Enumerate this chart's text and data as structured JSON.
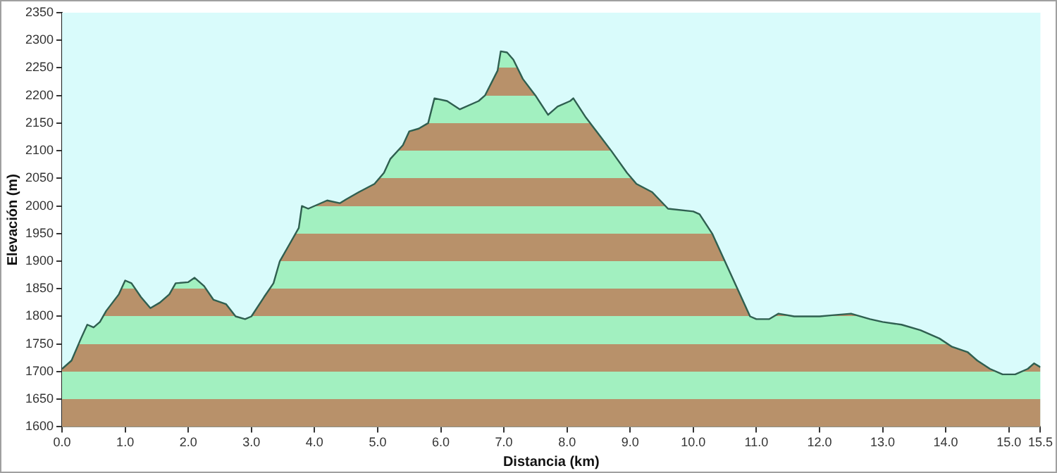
{
  "chart_data": {
    "type": "area",
    "xlabel": "Distancia (km)",
    "ylabel": "Elevación (m)",
    "x": [
      0.0,
      0.15,
      0.3,
      0.4,
      0.5,
      0.6,
      0.7,
      0.8,
      0.9,
      1.0,
      1.1,
      1.25,
      1.4,
      1.55,
      1.7,
      1.8,
      2.0,
      2.1,
      2.25,
      2.4,
      2.6,
      2.75,
      2.9,
      3.0,
      3.2,
      3.35,
      3.45,
      3.6,
      3.75,
      3.8,
      3.9,
      4.2,
      4.4,
      4.5,
      4.7,
      4.95,
      5.1,
      5.2,
      5.4,
      5.5,
      5.65,
      5.8,
      5.9,
      6.1,
      6.3,
      6.6,
      6.7,
      6.9,
      6.95,
      7.05,
      7.15,
      7.3,
      7.5,
      7.7,
      7.85,
      8.05,
      8.1,
      8.3,
      8.5,
      8.7,
      8.95,
      9.1,
      9.35,
      9.6,
      10.0,
      10.1,
      10.3,
      10.5,
      10.7,
      10.9,
      11.0,
      11.2,
      11.35,
      11.6,
      12.0,
      12.2,
      12.5,
      12.8,
      13.0,
      13.3,
      13.6,
      13.9,
      14.1,
      14.35,
      14.5,
      14.7,
      14.9,
      15.1,
      15.3,
      15.4,
      15.5
    ],
    "series": [
      {
        "color": "#2f5f50",
        "values": [
          1705,
          1720,
          1760,
          1785,
          1780,
          1790,
          1810,
          1825,
          1840,
          1865,
          1860,
          1835,
          1815,
          1825,
          1840,
          1860,
          1862,
          1870,
          1855,
          1830,
          1822,
          1800,
          1795,
          1800,
          1835,
          1860,
          1900,
          1930,
          1960,
          2000,
          1995,
          2010,
          2005,
          2012,
          2025,
          2040,
          2060,
          2085,
          2110,
          2135,
          2140,
          2150,
          2195,
          2190,
          2175,
          2190,
          2200,
          2245,
          2280,
          2278,
          2265,
          2230,
          2200,
          2165,
          2180,
          2190,
          2195,
          2160,
          2130,
          2100,
          2060,
          2040,
          2025,
          1995,
          1990,
          1985,
          1950,
          1900,
          1850,
          1800,
          1795,
          1795,
          1805,
          1800,
          1800,
          1802,
          1805,
          1795,
          1790,
          1785,
          1775,
          1760,
          1745,
          1735,
          1720,
          1705,
          1695,
          1695,
          1705,
          1715,
          1708
        ]
      }
    ],
    "xlim": [
      0,
      15.5
    ],
    "xticks": [
      {
        "value": 0,
        "label": "0.0"
      },
      {
        "value": 1,
        "label": "1.0"
      },
      {
        "value": 2,
        "label": "2.0"
      },
      {
        "value": 3,
        "label": "3.0"
      },
      {
        "value": 4,
        "label": "4.0"
      },
      {
        "value": 5,
        "label": "5.0"
      },
      {
        "value": 6,
        "label": "6.0"
      },
      {
        "value": 7,
        "label": "7.0"
      },
      {
        "value": 8,
        "label": "8.0"
      },
      {
        "value": 9,
        "label": "9.0"
      },
      {
        "value": 10,
        "label": "10.0"
      },
      {
        "value": 11,
        "label": "11.0"
      },
      {
        "value": 12,
        "label": "12.0"
      },
      {
        "value": 13,
        "label": "13.0"
      },
      {
        "value": 14,
        "label": "14.0"
      },
      {
        "value": 15,
        "label": "15.0"
      },
      15.5
    ],
    "ylim": [
      1600,
      2350
    ],
    "yticks": [
      1600,
      1650,
      1700,
      1750,
      1800,
      1850,
      1900,
      1950,
      2000,
      2050,
      2100,
      2150,
      2200,
      2250,
      2300,
      2350
    ],
    "legend": false
  }
}
